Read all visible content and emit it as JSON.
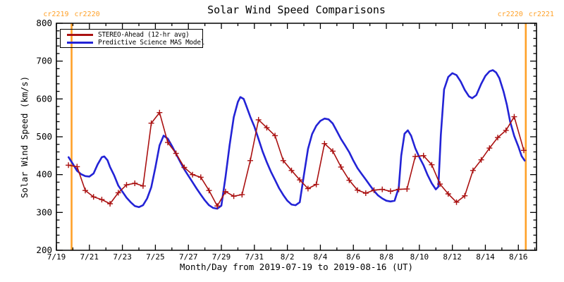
{
  "title": "Solar Wind Speed Comparisons",
  "chart_data": {
    "type": "line",
    "title": "Solar Wind Speed Comparisons",
    "xlabel": "Month/Day from 2019-07-19 to 2019-08-16 (UT)",
    "ylabel": "Solar Wind Speed (km/s)",
    "x_unit": "days since 2019-07-19 00:00 UT",
    "x_range_days": [
      0,
      29.1
    ],
    "ylim": [
      200,
      800
    ],
    "grid": false,
    "legend_position": "top-left-inside",
    "frame_color": "#000000",
    "x_ticks": [
      {
        "day": 0,
        "label": "7/19"
      },
      {
        "day": 2,
        "label": "7/21"
      },
      {
        "day": 4,
        "label": "7/23"
      },
      {
        "day": 6,
        "label": "7/25"
      },
      {
        "day": 8,
        "label": "7/27"
      },
      {
        "day": 10,
        "label": "7/29"
      },
      {
        "day": 12,
        "label": "7/31"
      },
      {
        "day": 14,
        "label": "8/2"
      },
      {
        "day": 16,
        "label": "8/4"
      },
      {
        "day": 18,
        "label": "8/6"
      },
      {
        "day": 20,
        "label": "8/8"
      },
      {
        "day": 22,
        "label": "8/10"
      },
      {
        "day": 24,
        "label": "8/12"
      },
      {
        "day": 26,
        "label": "8/14"
      },
      {
        "day": 28,
        "label": "8/16"
      }
    ],
    "x_minor_step_days": 1,
    "y_ticks": [
      200,
      300,
      400,
      500,
      600,
      700,
      800
    ],
    "y_minor_step": 20,
    "series": [
      {
        "name": "STEREO-Ahead (12-hr avg)",
        "color": "#aa1111",
        "marker": "plus",
        "points_day_kms": [
          [
            0.73,
            425
          ],
          [
            1.25,
            421
          ],
          [
            1.75,
            358
          ],
          [
            2.25,
            341
          ],
          [
            2.75,
            334
          ],
          [
            3.25,
            323
          ],
          [
            3.75,
            352
          ],
          [
            4.25,
            373
          ],
          [
            4.75,
            377
          ],
          [
            5.25,
            370
          ],
          [
            5.75,
            536
          ],
          [
            6.25,
            564
          ],
          [
            6.75,
            485
          ],
          [
            7.25,
            456
          ],
          [
            7.75,
            419
          ],
          [
            8.25,
            400
          ],
          [
            8.75,
            393
          ],
          [
            9.25,
            358
          ],
          [
            9.75,
            317
          ],
          [
            10.25,
            355
          ],
          [
            10.75,
            343
          ],
          [
            11.25,
            347
          ],
          [
            11.75,
            437
          ],
          [
            12.25,
            545
          ],
          [
            12.75,
            524
          ],
          [
            13.25,
            503
          ],
          [
            13.75,
            437
          ],
          [
            14.25,
            411
          ],
          [
            14.75,
            386
          ],
          [
            15.25,
            363
          ],
          [
            15.75,
            374
          ],
          [
            16.25,
            482
          ],
          [
            16.75,
            462
          ],
          [
            17.25,
            420
          ],
          [
            17.75,
            385
          ],
          [
            18.25,
            359
          ],
          [
            18.75,
            351
          ],
          [
            19.25,
            359
          ],
          [
            19.75,
            361
          ],
          [
            20.25,
            356
          ],
          [
            20.75,
            361
          ],
          [
            21.25,
            362
          ],
          [
            21.75,
            448
          ],
          [
            22.25,
            450
          ],
          [
            22.75,
            426
          ],
          [
            23.25,
            375
          ],
          [
            23.75,
            349
          ],
          [
            24.25,
            327
          ],
          [
            24.75,
            344
          ],
          [
            25.25,
            411
          ],
          [
            25.75,
            439
          ],
          [
            26.25,
            470
          ],
          [
            26.75,
            498
          ],
          [
            27.25,
            517
          ],
          [
            27.75,
            553
          ],
          [
            28.33,
            464
          ]
        ]
      },
      {
        "name": "Predictive Science MAS Model",
        "color": "#2323d6",
        "marker": "none",
        "points_day_kms": [
          [
            0.74,
            446
          ],
          [
            1.0,
            428
          ],
          [
            1.25,
            410
          ],
          [
            1.5,
            401
          ],
          [
            1.75,
            396
          ],
          [
            2.0,
            395
          ],
          [
            2.25,
            403
          ],
          [
            2.5,
            427
          ],
          [
            2.75,
            446
          ],
          [
            2.9,
            448
          ],
          [
            3.1,
            438
          ],
          [
            3.25,
            420
          ],
          [
            3.5,
            398
          ],
          [
            3.75,
            371
          ],
          [
            4.0,
            355
          ],
          [
            4.25,
            339
          ],
          [
            4.5,
            327
          ],
          [
            4.75,
            317
          ],
          [
            5.0,
            314
          ],
          [
            5.25,
            319
          ],
          [
            5.5,
            337
          ],
          [
            5.75,
            367
          ],
          [
            6.0,
            419
          ],
          [
            6.25,
            477
          ],
          [
            6.5,
            503
          ],
          [
            6.75,
            495
          ],
          [
            7.0,
            476
          ],
          [
            7.25,
            455
          ],
          [
            7.5,
            434
          ],
          [
            7.75,
            414
          ],
          [
            8.0,
            397
          ],
          [
            8.25,
            380
          ],
          [
            8.5,
            363
          ],
          [
            8.75,
            347
          ],
          [
            9.0,
            332
          ],
          [
            9.25,
            319
          ],
          [
            9.5,
            312
          ],
          [
            9.75,
            310
          ],
          [
            10.0,
            318
          ],
          [
            10.25,
            394
          ],
          [
            10.5,
            478
          ],
          [
            10.75,
            552
          ],
          [
            11.0,
            592
          ],
          [
            11.15,
            605
          ],
          [
            11.35,
            600
          ],
          [
            11.5,
            583
          ],
          [
            11.75,
            553
          ],
          [
            12.0,
            527
          ],
          [
            12.25,
            494
          ],
          [
            12.5,
            461
          ],
          [
            12.75,
            433
          ],
          [
            13.0,
            408
          ],
          [
            13.25,
            386
          ],
          [
            13.5,
            364
          ],
          [
            13.75,
            346
          ],
          [
            14.0,
            331
          ],
          [
            14.25,
            321
          ],
          [
            14.5,
            319
          ],
          [
            14.75,
            327
          ],
          [
            15.0,
            398
          ],
          [
            15.25,
            468
          ],
          [
            15.5,
            507
          ],
          [
            15.75,
            529
          ],
          [
            16.0,
            542
          ],
          [
            16.25,
            548
          ],
          [
            16.5,
            546
          ],
          [
            16.75,
            535
          ],
          [
            17.0,
            515
          ],
          [
            17.25,
            494
          ],
          [
            17.5,
            477
          ],
          [
            17.75,
            459
          ],
          [
            18.0,
            437
          ],
          [
            18.25,
            417
          ],
          [
            18.5,
            402
          ],
          [
            18.75,
            387
          ],
          [
            19.0,
            372
          ],
          [
            19.25,
            357
          ],
          [
            19.5,
            345
          ],
          [
            19.75,
            337
          ],
          [
            20.0,
            331
          ],
          [
            20.25,
            329
          ],
          [
            20.5,
            331
          ],
          [
            20.75,
            365
          ],
          [
            20.9,
            450
          ],
          [
            21.1,
            508
          ],
          [
            21.3,
            517
          ],
          [
            21.5,
            503
          ],
          [
            21.75,
            470
          ],
          [
            22.0,
            446
          ],
          [
            22.25,
            425
          ],
          [
            22.5,
            399
          ],
          [
            22.75,
            377
          ],
          [
            23.0,
            361
          ],
          [
            23.15,
            368
          ],
          [
            23.3,
            505
          ],
          [
            23.5,
            625
          ],
          [
            23.75,
            658
          ],
          [
            24.0,
            668
          ],
          [
            24.25,
            663
          ],
          [
            24.5,
            646
          ],
          [
            24.75,
            624
          ],
          [
            25.0,
            607
          ],
          [
            25.2,
            602
          ],
          [
            25.45,
            610
          ],
          [
            25.75,
            640
          ],
          [
            26.0,
            661
          ],
          [
            26.25,
            673
          ],
          [
            26.45,
            676
          ],
          [
            26.65,
            670
          ],
          [
            26.85,
            655
          ],
          [
            27.1,
            620
          ],
          [
            27.3,
            585
          ],
          [
            27.5,
            540
          ],
          [
            27.75,
            502
          ],
          [
            28.0,
            474
          ],
          [
            28.2,
            449
          ],
          [
            28.38,
            437
          ]
        ]
      }
    ],
    "carrington_boundaries": [
      {
        "day": 0.92,
        "label_left": "cr2219",
        "label_right": "cr2220"
      },
      {
        "day": 28.45,
        "label_left": "cr2220",
        "label_right": "cr2221"
      }
    ],
    "annotation_color": "#ffa128"
  },
  "legend": {
    "entries": [
      {
        "label": "STEREO-Ahead (12-hr avg)",
        "color": "#aa1111"
      },
      {
        "label": "Predictive Science MAS Model",
        "color": "#2323d6"
      }
    ]
  }
}
